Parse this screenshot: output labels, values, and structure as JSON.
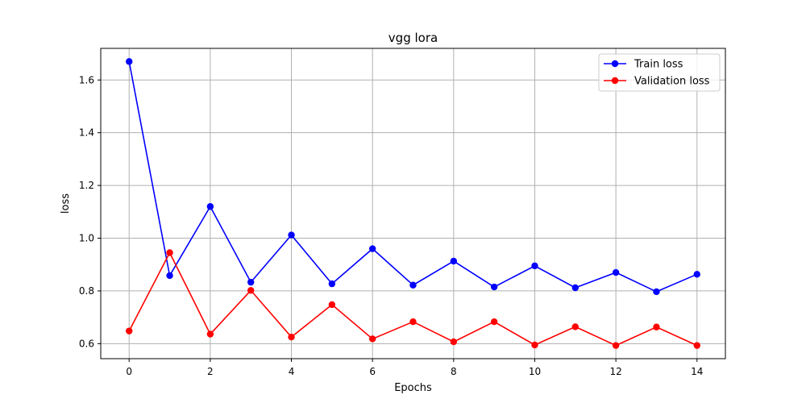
{
  "chart_data": {
    "type": "line",
    "title": "vgg lora",
    "xlabel": "Epochs",
    "ylabel": "loss",
    "x": [
      0,
      1,
      2,
      3,
      4,
      5,
      6,
      7,
      8,
      9,
      10,
      11,
      12,
      13,
      14
    ],
    "xlim": [
      -0.7,
      14.7
    ],
    "ylim": [
      0.543,
      1.72
    ],
    "xticks": [
      0,
      2,
      4,
      6,
      8,
      10,
      12,
      14
    ],
    "yticks": [
      0.6,
      0.8,
      1.0,
      1.2,
      1.4,
      1.6
    ],
    "ytick_labels": [
      "0.6",
      "0.8",
      "1.0",
      "1.2",
      "1.4",
      "1.6"
    ],
    "grid": true,
    "legend_position": "top-right",
    "series": [
      {
        "name": "Train loss",
        "color": "#0000ff",
        "marker": "circle",
        "values": [
          1.67,
          0.858,
          1.12,
          0.833,
          1.012,
          0.827,
          0.96,
          0.822,
          0.913,
          0.815,
          0.895,
          0.812,
          0.87,
          0.797,
          0.863
        ]
      },
      {
        "name": "Validation loss",
        "color": "#ff0000",
        "marker": "circle",
        "values": [
          0.648,
          0.945,
          0.636,
          0.802,
          0.625,
          0.748,
          0.618,
          0.683,
          0.607,
          0.683,
          0.595,
          0.664,
          0.593,
          0.663,
          0.593
        ]
      }
    ]
  }
}
